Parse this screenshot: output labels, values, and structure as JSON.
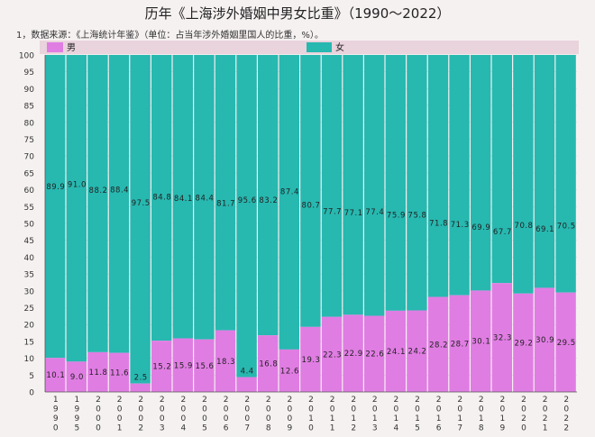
{
  "title": "历年《上海涉外婚姻中男女比重》（1990～2022）",
  "note": "1，数据来源：《上海统计年鉴》（单位：占当年涉外婚姻里国人的比重，%）。",
  "colors": {
    "male": "#e07de3",
    "female": "#27b8b0",
    "header": "#e9d3dc"
  },
  "chart_data": {
    "type": "bar",
    "stacked": true,
    "title": "历年《上海涉外婚姻中男女比重》（1990～2022）",
    "categories": [
      "1990",
      "1995",
      "2000",
      "2001",
      "2002",
      "2003",
      "2004",
      "2005",
      "2006",
      "2007",
      "2008",
      "2009",
      "2010",
      "2011",
      "2012",
      "2013",
      "2014",
      "2015",
      "2016",
      "2017",
      "2018",
      "2019",
      "2020",
      "2021",
      "2022"
    ],
    "series": [
      {
        "name": "男",
        "values": [
          10.1,
          9.0,
          11.8,
          11.6,
          2.5,
          15.2,
          15.9,
          15.6,
          18.3,
          4.4,
          16.8,
          12.6,
          19.3,
          22.3,
          22.9,
          22.6,
          24.1,
          24.2,
          28.2,
          28.7,
          30.1,
          32.3,
          29.2,
          30.9,
          29.5
        ]
      },
      {
        "name": "女",
        "values": [
          89.9,
          91.0,
          88.2,
          88.4,
          97.5,
          84.8,
          84.1,
          84.4,
          81.7,
          95.6,
          83.2,
          87.4,
          80.7,
          77.7,
          77.1,
          77.4,
          75.9,
          75.8,
          71.8,
          71.3,
          69.9,
          67.7,
          70.8,
          69.1,
          70.5
        ]
      }
    ],
    "value_labels": {
      "男": [
        "10.1",
        "9.0",
        "11.8",
        "11.6",
        "2.5",
        "15.2",
        "15.9",
        "15.6",
        "18.3",
        "4.4",
        "16.8",
        "12.6",
        "19.3",
        "22.3",
        "22.9",
        "22.6",
        "24.1",
        "24.2",
        "28.2",
        "28.7",
        "30.1",
        "32.3",
        "29.2",
        "30.9",
        "29.5"
      ],
      "女": [
        "89.9",
        "91.0",
        "88.2",
        "88.4",
        "97.5",
        "84.8",
        "84.1",
        "84.4",
        "81.7",
        "95.6",
        "83.2",
        "87.4",
        "80.7",
        "77.7",
        "77.1",
        "77.4",
        "75.9",
        "75.8",
        "71.8",
        "71.3",
        "69.9",
        "67.7",
        "70.8",
        "69.1",
        "70.5"
      ]
    },
    "ylim": [
      0,
      100
    ],
    "yticks": [
      "0",
      "5",
      "10",
      "15",
      "20",
      "25",
      "30",
      "35",
      "40",
      "45",
      "50",
      "55",
      "60",
      "65",
      "70",
      "75",
      "80",
      "85",
      "90",
      "95",
      "100"
    ],
    "legend": "top"
  }
}
